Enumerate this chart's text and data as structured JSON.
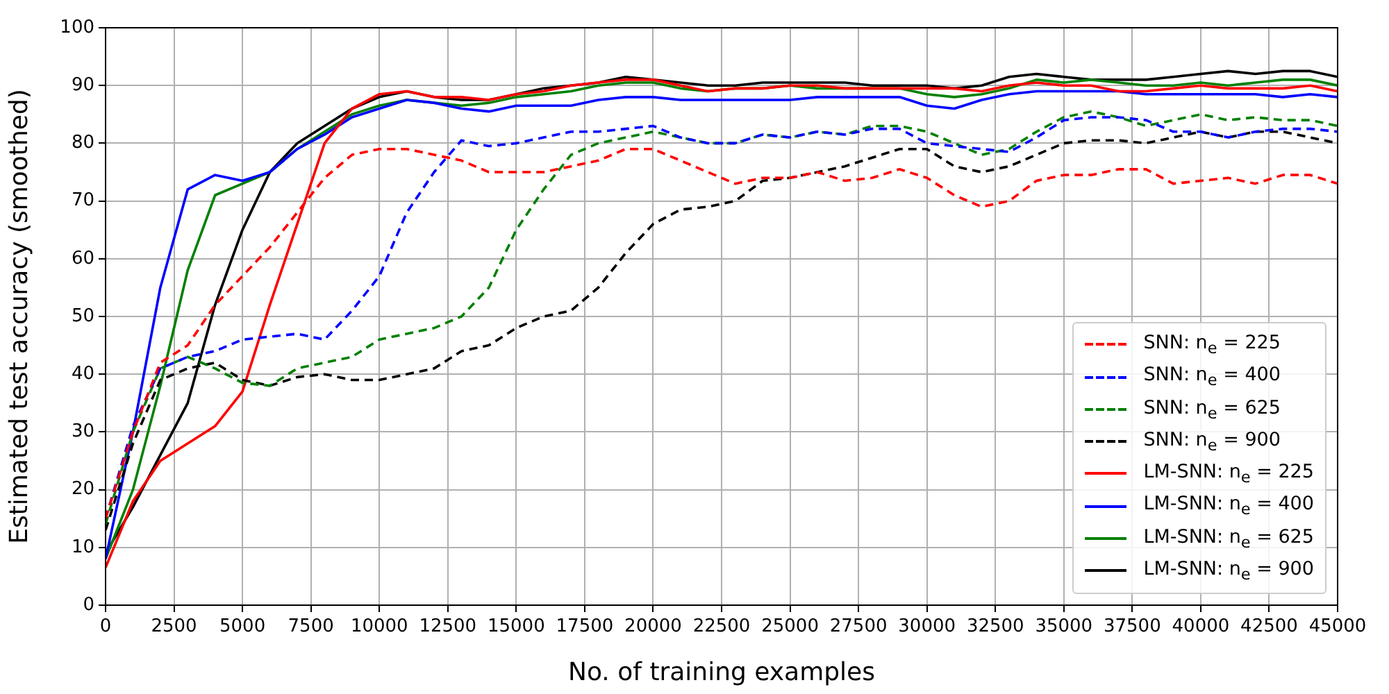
{
  "chart_data": {
    "type": "line",
    "xlabel": "No. of training examples",
    "ylabel": "Estimated test accuracy (smoothed)",
    "x": [
      0,
      1000,
      2000,
      3000,
      4000,
      5000,
      6000,
      7000,
      8000,
      9000,
      10000,
      11000,
      12000,
      13000,
      14000,
      15000,
      16000,
      17000,
      18000,
      19000,
      20000,
      21000,
      22000,
      23000,
      24000,
      25000,
      26000,
      27000,
      28000,
      29000,
      30000,
      31000,
      32000,
      33000,
      34000,
      35000,
      36000,
      37000,
      38000,
      39000,
      40000,
      41000,
      42000,
      43000,
      44000,
      45000
    ],
    "xlim": [
      0,
      45000
    ],
    "xticks": [
      0,
      2500,
      5000,
      7500,
      10000,
      12500,
      15000,
      17500,
      20000,
      22500,
      25000,
      27500,
      30000,
      32500,
      35000,
      37500,
      40000,
      42500,
      45000
    ],
    "ylim": [
      0,
      100
    ],
    "yticks": [
      0,
      10,
      20,
      30,
      40,
      50,
      60,
      70,
      80,
      90,
      100
    ],
    "grid": true,
    "legend": "bottom right",
    "marker": "none",
    "series": [
      {
        "name": "SNN: n$_{e}$ =  225",
        "color": "#ff0000",
        "line_style": "dashed",
        "values": [
          15,
          30,
          42,
          45,
          52,
          57,
          62,
          68,
          74,
          78,
          79,
          79,
          78,
          77,
          75,
          75,
          75,
          76,
          77,
          79,
          79,
          77,
          75,
          73,
          74,
          74,
          75,
          73.5,
          74,
          75.5,
          74,
          71,
          69,
          70,
          73.5,
          74.5,
          74.5,
          75.5,
          75.5,
          73,
          73.5,
          74,
          73,
          74.5,
          74.5,
          73
        ]
      },
      {
        "name": "SNN: n$_{e}$ =  400",
        "color": "#0000ff",
        "line_style": "dashed",
        "values": [
          15,
          31,
          41,
          43,
          44,
          46,
          46.5,
          47,
          46,
          51,
          57,
          68,
          75,
          80.5,
          79.5,
          80,
          81,
          82,
          82,
          82.5,
          83,
          81,
          80,
          80,
          81.5,
          81,
          82,
          81.5,
          82.5,
          82.5,
          80,
          79.5,
          79,
          78.5,
          81,
          84,
          84.5,
          84.5,
          84,
          82,
          82,
          81,
          82,
          82.5,
          82.5,
          82
        ]
      },
      {
        "name": "SNN: n$_{e}$ =  625",
        "color": "#008000",
        "line_style": "dashed",
        "values": [
          14,
          30,
          41,
          43,
          41,
          38.5,
          38,
          41,
          42,
          43,
          46,
          47,
          48,
          50,
          55,
          65,
          72,
          78,
          80,
          81,
          82,
          81,
          80,
          80,
          81.5,
          81,
          82,
          81.5,
          83,
          83,
          82,
          80,
          78,
          79,
          82,
          84.5,
          85.5,
          84.5,
          83,
          84,
          85,
          84,
          84.5,
          84,
          84,
          83
        ]
      },
      {
        "name": "SNN: n$_{e}$ =  900",
        "color": "#000000",
        "line_style": "dashed",
        "values": [
          13,
          28,
          39,
          41,
          42,
          39,
          38,
          39.5,
          40,
          39,
          39,
          40,
          41,
          44,
          45,
          48,
          50,
          51,
          55,
          61,
          66,
          68.5,
          69,
          70,
          73.5,
          74,
          75,
          76,
          77.5,
          79,
          79,
          76,
          75,
          76,
          78,
          80,
          80.5,
          80.5,
          80,
          81,
          82,
          81,
          82,
          82,
          81,
          80
        ]
      },
      {
        "name": "LM-SNN: n$_{e}$ =  225",
        "color": "#ff0000",
        "line_style": "solid",
        "values": [
          6.5,
          18,
          25,
          28,
          31,
          37,
          52,
          66,
          80,
          86,
          88.5,
          89,
          88,
          88,
          87.5,
          88.5,
          89,
          90,
          90.5,
          91,
          91,
          90,
          89,
          89.5,
          89.5,
          90,
          90,
          89.5,
          89.5,
          89.5,
          89.5,
          89.5,
          89,
          90,
          90.5,
          90,
          90,
          89,
          89,
          89.5,
          90,
          89.5,
          89.5,
          89.5,
          90,
          89
        ]
      },
      {
        "name": "LM-SNN: n$_{e}$ =  400",
        "color": "#0000ff",
        "line_style": "solid",
        "values": [
          8,
          30,
          55,
          72,
          74.5,
          73.5,
          75,
          79,
          81.5,
          84.5,
          86,
          87.5,
          87,
          86,
          85.5,
          86.5,
          86.5,
          86.5,
          87.5,
          88,
          88,
          87.5,
          87.5,
          87.5,
          87.5,
          87.5,
          88,
          88,
          88,
          88,
          86.5,
          86,
          87.5,
          88.5,
          89,
          89,
          89,
          89,
          88.5,
          88.5,
          88.5,
          88.5,
          88.5,
          88,
          88.5,
          88
        ]
      },
      {
        "name": "LM-SNN: n$_{e}$ =  625",
        "color": "#008000",
        "line_style": "solid",
        "values": [
          8,
          20,
          38,
          58,
          71,
          73,
          75,
          79,
          82,
          85,
          86.5,
          87.5,
          87,
          86.5,
          87,
          88,
          88.5,
          89,
          90,
          90.5,
          90.5,
          89.5,
          89,
          89.5,
          89.5,
          90,
          89.5,
          89.5,
          89.5,
          89.5,
          88.5,
          88,
          88.5,
          89.5,
          91,
          90.5,
          91,
          90.5,
          90,
          90,
          90.5,
          90,
          90.5,
          91,
          91,
          90
        ]
      },
      {
        "name": "LM-SNN: n$_{e}$ =  900",
        "color": "#000000",
        "line_style": "solid",
        "values": [
          9,
          17,
          26,
          35,
          52,
          65,
          75,
          80,
          83,
          86,
          88,
          89,
          88,
          87.5,
          87.5,
          88.5,
          89.5,
          90,
          90.5,
          91.5,
          91,
          90.5,
          90,
          90,
          90.5,
          90.5,
          90.5,
          90.5,
          90,
          90,
          90,
          89.5,
          90,
          91.5,
          92,
          91.5,
          91,
          91,
          91,
          91.5,
          92,
          92.5,
          92,
          92.5,
          92.5,
          91.5
        ]
      }
    ]
  }
}
